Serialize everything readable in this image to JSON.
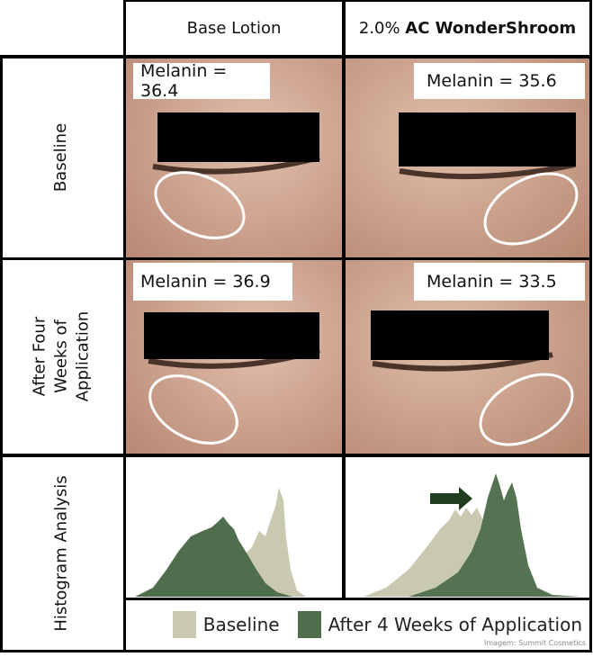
{
  "columns": [
    "Base Lotion",
    {
      "prefix": "2.0% ",
      "brand": "AC WonderShroom"
    }
  ],
  "rows": [
    "Baseline",
    "After Four Weeks of Application",
    "Histogram Analysis"
  ],
  "melanin": {
    "baseline_base": "Melanin = 36.4",
    "baseline_active": "Melanin = 35.6",
    "after_base": "Melanin = 36.9",
    "after_active": "Melanin = 33.5"
  },
  "legend": {
    "baseline": "Baseline",
    "after": "After 4 Weeks of Application"
  },
  "credit": "Imagem: Summit Cosmetics",
  "colors": {
    "baseline": "#c9c9b1",
    "after": "#4f6e4d",
    "arrow": "#1f3d1f",
    "skin": "#d9b3a0"
  }
}
